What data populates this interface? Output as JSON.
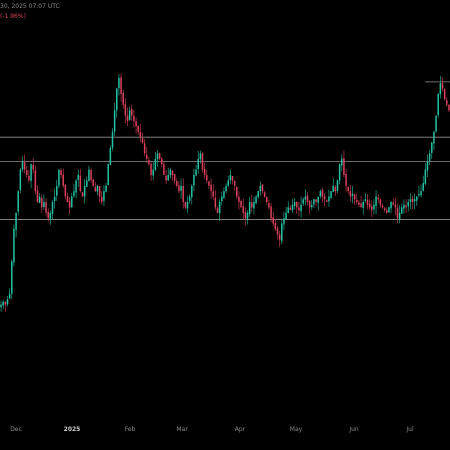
{
  "header": {
    "timestamp": "30, 2025 07:07 UTC",
    "change": "(-1.96%)"
  },
  "colors": {
    "background": "#000000",
    "up": "#22c5a5",
    "down": "#e0405c",
    "level_line": "#8f8f8f",
    "axis_text": "#8a8a8a"
  },
  "chart_data": {
    "type": "candlestick",
    "title": "",
    "x_axis_labels": [
      {
        "text": "Dec",
        "bold": false
      },
      {
        "text": "2025",
        "bold": true
      },
      {
        "text": "Feb",
        "bold": false
      },
      {
        "text": "Mar",
        "bold": false
      },
      {
        "text": "Apr",
        "bold": false
      },
      {
        "text": "May",
        "bold": false
      },
      {
        "text": "Jun",
        "bold": false
      },
      {
        "text": "Jul",
        "bold": false
      }
    ],
    "grid": false,
    "horizontal_levels": [
      {
        "price": 0.64,
        "extent": "full"
      },
      {
        "price": 0.55,
        "extent": "full"
      },
      {
        "price": 0.335,
        "extent": "full"
      },
      {
        "price": 0.845,
        "extent": "right"
      }
    ],
    "close_path": [
      0.02,
      0.03,
      0.02,
      0.04,
      0.06,
      0.18,
      0.3,
      0.36,
      0.44,
      0.52,
      0.55,
      0.52,
      0.5,
      0.48,
      0.54,
      0.52,
      0.44,
      0.4,
      0.42,
      0.38,
      0.4,
      0.36,
      0.34,
      0.36,
      0.4,
      0.42,
      0.46,
      0.52,
      0.5,
      0.46,
      0.42,
      0.4,
      0.38,
      0.42,
      0.44,
      0.48,
      0.5,
      0.44,
      0.42,
      0.46,
      0.48,
      0.52,
      0.48,
      0.46,
      0.44,
      0.46,
      0.42,
      0.4,
      0.44,
      0.46,
      0.54,
      0.6,
      0.66,
      0.74,
      0.82,
      0.86,
      0.8,
      0.76,
      0.72,
      0.7,
      0.74,
      0.72,
      0.7,
      0.68,
      0.66,
      0.64,
      0.62,
      0.58,
      0.56,
      0.54,
      0.5,
      0.52,
      0.56,
      0.58,
      0.56,
      0.54,
      0.5,
      0.48,
      0.5,
      0.52,
      0.5,
      0.48,
      0.46,
      0.44,
      0.46,
      0.4,
      0.38,
      0.4,
      0.42,
      0.46,
      0.5,
      0.52,
      0.56,
      0.58,
      0.52,
      0.5,
      0.48,
      0.46,
      0.44,
      0.42,
      0.38,
      0.36,
      0.4,
      0.42,
      0.44,
      0.46,
      0.48,
      0.5,
      0.48,
      0.46,
      0.42,
      0.4,
      0.38,
      0.36,
      0.34,
      0.36,
      0.4,
      0.38,
      0.4,
      0.42,
      0.44,
      0.46,
      0.44,
      0.42,
      0.4,
      0.38,
      0.34,
      0.32,
      0.3,
      0.28,
      0.26,
      0.32,
      0.34,
      0.36,
      0.38,
      0.37,
      0.39,
      0.4,
      0.38,
      0.37,
      0.39,
      0.41,
      0.42,
      0.4,
      0.38,
      0.39,
      0.41,
      0.4,
      0.42,
      0.44,
      0.42,
      0.41,
      0.4,
      0.42,
      0.44,
      0.46,
      0.44,
      0.48,
      0.54,
      0.56,
      0.5,
      0.46,
      0.44,
      0.42,
      0.43,
      0.41,
      0.4,
      0.39,
      0.38,
      0.4,
      0.41,
      0.39,
      0.38,
      0.37,
      0.39,
      0.42,
      0.41,
      0.39,
      0.38,
      0.37,
      0.36,
      0.38,
      0.4,
      0.39,
      0.38,
      0.34,
      0.36,
      0.38,
      0.39,
      0.38,
      0.4,
      0.41,
      0.4,
      0.41,
      0.42,
      0.43,
      0.44,
      0.47,
      0.52,
      0.55,
      0.58,
      0.62,
      0.66,
      0.72,
      0.8,
      0.84,
      0.82,
      0.78,
      0.76,
      0.74
    ]
  }
}
